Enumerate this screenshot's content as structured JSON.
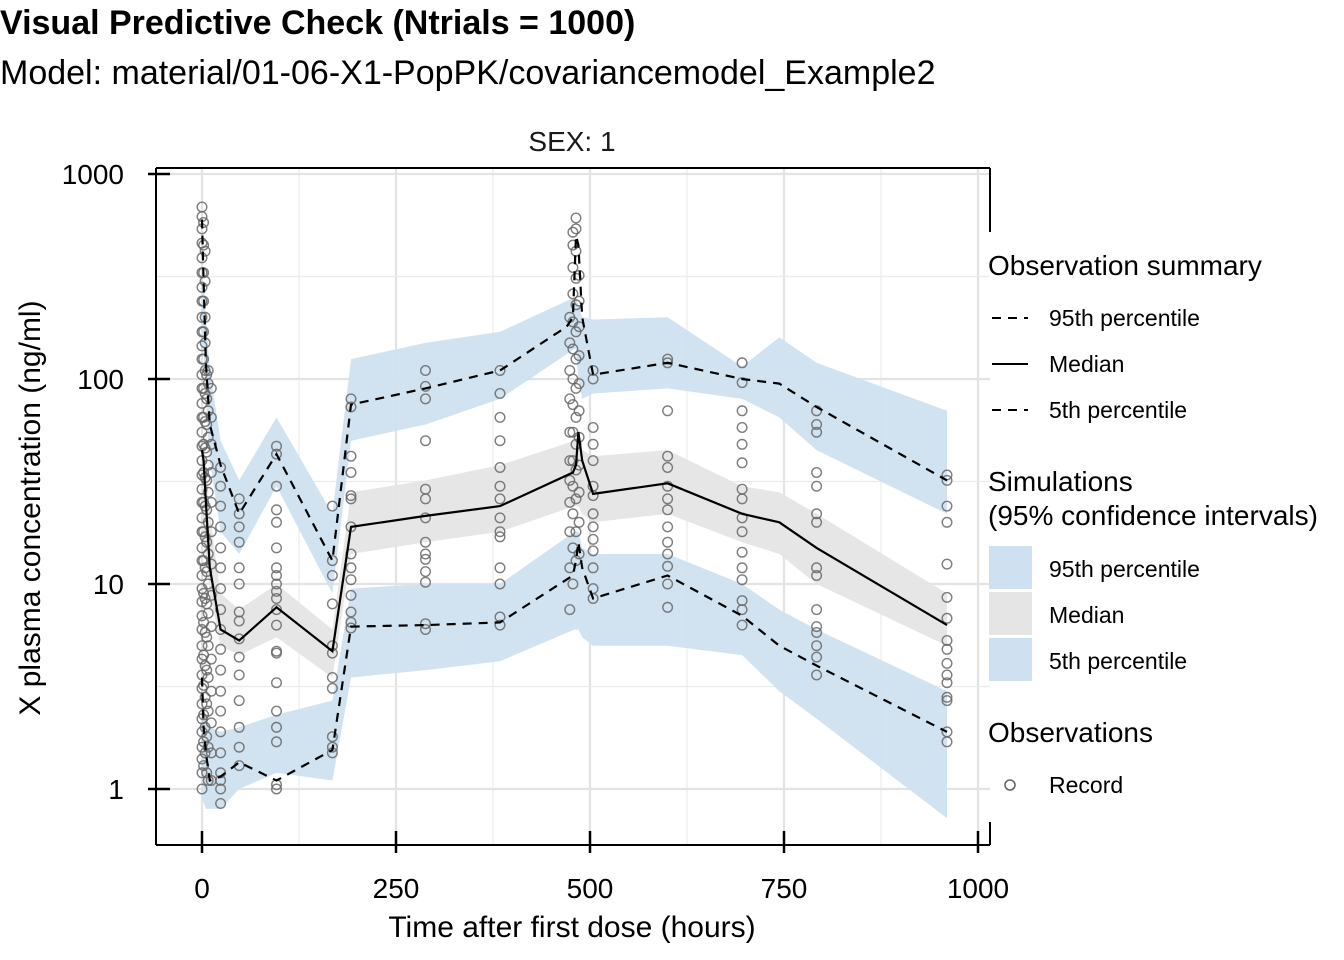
{
  "chart_data": {
    "type": "scatter",
    "title": "Visual Predictive Check (Ntrials = 1000)",
    "subtitle": "Model: material/01-06-X1-PopPK/covariancemodel_Example2",
    "facet_label": "SEX: 1",
    "xlabel": "Time after first dose (hours)",
    "ylabel": "X plasma concentration (ng/ml)",
    "xlim": [
      -25,
      1010
    ],
    "ylim": [
      0.6,
      1000
    ],
    "yscale": "log",
    "x_ticks": [
      0,
      250,
      500,
      750,
      1000
    ],
    "x_tick_labels": [
      "0",
      "250",
      "500",
      "750",
      "1000"
    ],
    "y_ticks": [
      1,
      10,
      100,
      1000
    ],
    "y_tick_labels": [
      "1",
      "10",
      "100",
      "1000"
    ],
    "grid": true,
    "legend_position": "right",
    "legend": {
      "observation_summary": {
        "title": "Observation summary",
        "items": [
          {
            "label": "95th percentile",
            "style": "dashed"
          },
          {
            "label": "Median",
            "style": "solid"
          },
          {
            "label": "5th percentile",
            "style": "dashed"
          }
        ]
      },
      "simulations": {
        "title_line1": "Simulations",
        "title_line2": "(95% confidence intervals)",
        "items": [
          {
            "label": "95th percentile",
            "color": "#cfe0f0"
          },
          {
            "label": "Median",
            "color": "#e5e5e5"
          },
          {
            "label": "5th percentile",
            "color": "#cfe0f0"
          }
        ]
      },
      "observations": {
        "title": "Observations",
        "items": [
          {
            "label": "Record"
          }
        ]
      }
    },
    "colors": {
      "upper_band": "#cfe0f0",
      "median_band": "#e5e5e5",
      "lower_band": "#cfe0f0",
      "lines": "#000000",
      "points": "#666666"
    },
    "bands": {
      "p95": {
        "x": [
          0,
          2,
          5,
          10,
          24,
          48,
          96,
          168,
          192,
          288,
          384,
          480,
          482,
          485,
          490,
          504,
          600,
          696,
          744,
          792,
          960
        ],
        "lower": [
          140,
          140,
          80,
          40,
          18,
          14,
          30,
          9,
          50,
          60,
          80,
          140,
          140,
          100,
          80,
          85,
          90,
          80,
          65,
          45,
          22
        ],
        "upper": [
          310,
          300,
          200,
          110,
          50,
          32,
          65,
          22,
          125,
          150,
          170,
          250,
          250,
          230,
          200,
          195,
          200,
          115,
          160,
          120,
          70
        ]
      },
      "median": {
        "x": [
          0,
          5,
          10,
          24,
          48,
          96,
          168,
          192,
          288,
          384,
          480,
          485,
          490,
          504,
          600,
          696,
          744,
          792,
          960
        ],
        "lower": [
          18,
          14,
          9,
          5,
          4.5,
          5.5,
          3.5,
          14,
          16,
          18,
          24,
          24,
          22,
          20,
          22,
          16,
          14,
          10,
          5
        ],
        "upper": [
          50,
          40,
          22,
          9,
          7.5,
          10,
          6,
          28,
          32,
          38,
          50,
          50,
          45,
          42,
          45,
          30,
          28,
          22,
          9
        ]
      },
      "p5": {
        "x": [
          0,
          5,
          10,
          24,
          48,
          96,
          168,
          192,
          288,
          384,
          480,
          485,
          490,
          504,
          600,
          696,
          744,
          792,
          960
        ],
        "lower": [
          0.9,
          0.8,
          0.8,
          0.8,
          1.0,
          1.2,
          1.1,
          3.5,
          3.8,
          4.2,
          6.0,
          6.0,
          5.5,
          5.0,
          5.0,
          4.5,
          3.0,
          2.2,
          0.72
        ],
        "upper": [
          2.5,
          2.3,
          2.0,
          1.9,
          2.0,
          2.3,
          2.7,
          9.5,
          10,
          10,
          18,
          18,
          15,
          14,
          14,
          10,
          7.5,
          6,
          3.0
        ]
      }
    },
    "series": [
      {
        "name": "95th percentile",
        "x": [
          0,
          2,
          5,
          10,
          24,
          48,
          96,
          168,
          192,
          288,
          384,
          470,
          478,
          482,
          485,
          490,
          504,
          600,
          696,
          744,
          792,
          960
        ],
        "values": [
          600,
          300,
          120,
          60,
          38,
          22,
          43,
          13,
          75,
          90,
          110,
          180,
          200,
          500,
          450,
          200,
          105,
          120,
          100,
          95,
          73,
          32
        ]
      },
      {
        "name": "Median",
        "x": [
          0,
          2,
          5,
          10,
          24,
          48,
          96,
          168,
          192,
          288,
          384,
          478,
          482,
          485,
          490,
          504,
          600,
          696,
          744,
          792,
          960
        ],
        "values": [
          45,
          40,
          25,
          12,
          6,
          5.3,
          7.7,
          4.7,
          19,
          21.5,
          24,
          35,
          38,
          55,
          40,
          27.5,
          31,
          22,
          20,
          15,
          6.3
        ]
      },
      {
        "name": "5th percentile",
        "x": [
          0,
          2,
          5,
          10,
          24,
          48,
          96,
          168,
          192,
          288,
          384,
          478,
          482,
          485,
          490,
          504,
          600,
          696,
          744,
          792,
          960
        ],
        "values": [
          3.5,
          2,
          1.5,
          1.1,
          1.15,
          1.35,
          1.1,
          1.55,
          6.2,
          6.3,
          6.5,
          11,
          13,
          16,
          12,
          8.5,
          11,
          7,
          5,
          4,
          1.9
        ]
      }
    ],
    "observations": [
      {
        "x": 0,
        "y": [
          1.0,
          1.2,
          1.4,
          1.6,
          1.9,
          2.2,
          2.6,
          3.1,
          3.6,
          4.3,
          5.0,
          6.0,
          7.0,
          8.2,
          9.5,
          11,
          13,
          15,
          18,
          21,
          25,
          29,
          34,
          40,
          47,
          55,
          65,
          76,
          90,
          105,
          125,
          145,
          170,
          200,
          240,
          280,
          330,
          390,
          460,
          540,
          620,
          690
        ]
      },
      {
        "x": 2,
        "y": [
          1.3,
          1.7,
          2.3,
          3.2,
          4.5,
          6.5,
          9,
          13,
          18,
          25,
          35,
          48,
          65,
          90,
          125,
          170,
          240,
          330,
          450,
          580
        ]
      },
      {
        "x": 4,
        "y": [
          1.5,
          2.0,
          2.8,
          4.0,
          5.8,
          8.5,
          12,
          17,
          24,
          33,
          46,
          62,
          85,
          110,
          150,
          200,
          300,
          420
        ]
      },
      {
        "x": 6,
        "y": [
          1.2,
          1.8,
          2.6,
          3.8,
          5.5,
          8,
          11.5,
          16,
          23,
          32,
          44,
          60,
          80,
          105
        ]
      },
      {
        "x": 8,
        "y": [
          1.1,
          1.6,
          2.4,
          3.5,
          5,
          7.2,
          10,
          14,
          20,
          28,
          38,
          52,
          70,
          95,
          110
        ]
      },
      {
        "x": 12,
        "y": [
          1.1,
          1.5,
          2.1,
          3.0,
          4.3,
          6.2,
          8.8,
          12.5,
          18,
          25,
          35,
          48,
          65,
          90
        ]
      },
      {
        "x": 24,
        "y": [
          0.85,
          1.0,
          1.1,
          1.2,
          1.5,
          1.9,
          2.4,
          3.0,
          3.8,
          4.8,
          6.0,
          7.5,
          9.5,
          12,
          15,
          19,
          24,
          30,
          37
        ]
      },
      {
        "x": 48,
        "y": [
          1.3,
          1.6,
          2.0,
          2.7,
          3.6,
          4.4,
          5.4,
          6.6,
          7.3,
          10,
          12,
          16,
          19,
          22,
          26
        ]
      },
      {
        "x": 96,
        "y": [
          1.0,
          1.05,
          1.7,
          2.0,
          2.4,
          3.3,
          4.6,
          4.7,
          6.3,
          7.5,
          8.5,
          9.2,
          10,
          11,
          12,
          15,
          20,
          23,
          30,
          43,
          47
        ]
      },
      {
        "x": 168,
        "y": [
          1.5,
          1.6,
          1.8,
          3.1,
          3.5,
          4.6,
          5,
          8,
          11,
          13,
          24
        ]
      },
      {
        "x": 192,
        "y": [
          6.1,
          6.5,
          7.3,
          8.8,
          10.5,
          12,
          14,
          19,
          26,
          27,
          35,
          42,
          73,
          80
        ]
      },
      {
        "x": 288,
        "y": [
          6.0,
          6.4,
          10.2,
          11.5,
          13.2,
          14,
          16,
          21,
          26,
          29,
          50,
          80,
          92,
          110
        ]
      },
      {
        "x": 384,
        "y": [
          6.3,
          6.9,
          10,
          12,
          17,
          18,
          21,
          26,
          30,
          37,
          50,
          65,
          85,
          110
        ]
      },
      {
        "x": 474,
        "y": [
          7.5,
          12,
          18,
          25,
          32,
          40,
          55,
          80,
          110,
          150,
          200
        ]
      },
      {
        "x": 478,
        "y": [
          10,
          15,
          22,
          30,
          40,
          55,
          75,
          100,
          140,
          190,
          260,
          350,
          450,
          520
        ]
      },
      {
        "x": 482,
        "y": [
          13,
          18,
          26,
          36,
          48,
          65,
          90,
          125,
          170,
          230,
          310,
          420,
          540,
          610
        ]
      },
      {
        "x": 486,
        "y": [
          14,
          20,
          28,
          38,
          52,
          70,
          95,
          130,
          180,
          240,
          320
        ]
      },
      {
        "x": 504,
        "y": [
          8.5,
          9.5,
          12,
          14.5,
          16.5,
          19,
          22,
          27,
          30,
          40,
          48,
          58,
          100,
          110
        ]
      },
      {
        "x": 600,
        "y": [
          7.7,
          10,
          12.2,
          14,
          16,
          19,
          23,
          26,
          30,
          37,
          42,
          70,
          120,
          125
        ]
      },
      {
        "x": 696,
        "y": [
          6.3,
          7.5,
          8.3,
          10.5,
          12,
          14.3,
          18,
          21,
          26,
          29,
          39,
          48,
          58,
          70,
          96,
          120
        ]
      },
      {
        "x": 792,
        "y": [
          3.6,
          4.4,
          5,
          5.8,
          6.2,
          7.5,
          11,
          12,
          20,
          22,
          30,
          35,
          55,
          60,
          70
        ]
      },
      {
        "x": 960,
        "y": [
          1.7,
          1.9,
          2.7,
          2.8,
          3.3,
          3.6,
          4.1,
          4.8,
          5.3,
          6.8,
          8.6,
          12.5,
          20,
          24,
          32,
          34
        ]
      }
    ]
  }
}
